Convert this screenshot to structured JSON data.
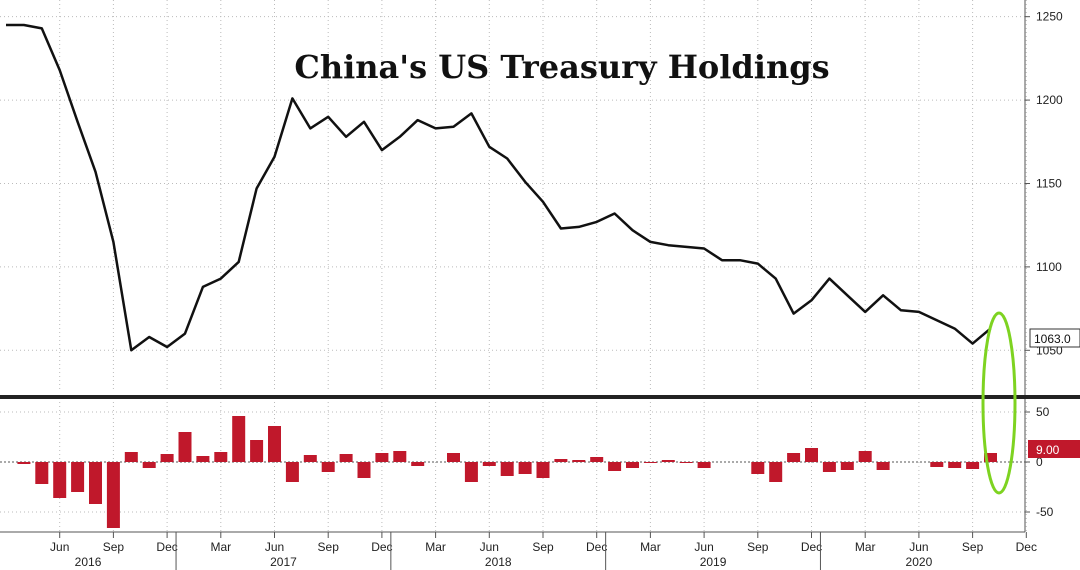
{
  "chart_data": [
    {
      "type": "line",
      "title": "China's US Treasury Holdings",
      "ylim": [
        1025,
        1260
      ],
      "yticks": [
        1050,
        1100,
        1150,
        1200,
        1250
      ],
      "ytick_labels": [
        "1050",
        "1100",
        "1150",
        "1200",
        "1250"
      ],
      "last_value_label": "1063.0",
      "grid": true,
      "x": [
        "2016-03",
        "2016-04",
        "2016-05",
        "2016-06",
        "2016-07",
        "2016-08",
        "2016-09",
        "2016-10",
        "2016-11",
        "2016-12",
        "2017-01",
        "2017-02",
        "2017-03",
        "2017-04",
        "2017-05",
        "2017-06",
        "2017-07",
        "2017-08",
        "2017-09",
        "2017-10",
        "2017-11",
        "2017-12",
        "2018-01",
        "2018-02",
        "2018-03",
        "2018-04",
        "2018-05",
        "2018-06",
        "2018-07",
        "2018-08",
        "2018-09",
        "2018-10",
        "2018-11",
        "2018-12",
        "2019-01",
        "2019-02",
        "2019-03",
        "2019-04",
        "2019-05",
        "2019-06",
        "2019-07",
        "2019-08",
        "2019-09",
        "2019-10",
        "2019-11",
        "2019-12",
        "2020-01",
        "2020-02",
        "2020-03",
        "2020-04",
        "2020-05",
        "2020-06",
        "2020-07",
        "2020-08",
        "2020-09",
        "2020-10"
      ],
      "series": [
        {
          "color": "#111111",
          "values": [
            1245,
            1245,
            1243,
            1218,
            1187,
            1157,
            1115,
            1050,
            1058,
            1052,
            1060,
            1088,
            1093,
            1103,
            1147,
            1166,
            1201,
            1183,
            1190,
            1178,
            1187,
            1170,
            1178,
            1188,
            1183,
            1184,
            1192,
            1172,
            1165,
            1151,
            1139,
            1123,
            1124,
            1127,
            1132,
            1122,
            1115,
            1113,
            1112,
            1111,
            1104,
            1104,
            1102,
            1093,
            1072,
            1080,
            1093,
            1083,
            1073,
            1083,
            1074,
            1073,
            1068,
            1063,
            1054,
            1063
          ]
        }
      ]
    },
    {
      "type": "bar",
      "ylim": [
        -70,
        60
      ],
      "yticks": [
        50,
        0,
        -50
      ],
      "ytick_labels": [
        "50",
        "0",
        "-50"
      ],
      "last_value_label": "9.00",
      "grid": true,
      "series": [
        {
          "color": "#c0182b",
          "values": [
            0,
            -2,
            -22,
            -36,
            -30,
            -42,
            -66,
            10,
            -6,
            8,
            30,
            6,
            10,
            46,
            22,
            36,
            -20,
            7,
            -10,
            8,
            -16,
            9,
            11,
            -4,
            0,
            9,
            -20,
            -4,
            -14,
            -12,
            -16,
            3,
            2,
            5,
            -9,
            -6,
            -1,
            2,
            -1,
            -6,
            0,
            0,
            -12,
            -20,
            9,
            14,
            -10,
            -8,
            11,
            -8,
            0,
            0,
            -5,
            -6,
            -7,
            9
          ]
        }
      ]
    }
  ],
  "x_axis": {
    "month_labels": [
      "Jun",
      "Sep",
      "Dec",
      "Mar",
      "Jun",
      "Sep",
      "Dec",
      "Mar",
      "Jun",
      "Sep",
      "Dec",
      "Mar",
      "Jun",
      "Sep",
      "Dec",
      "Mar",
      "Jun",
      "Sep",
      "Dec"
    ],
    "years": [
      "2016",
      "2017",
      "2018",
      "2019",
      "2020"
    ]
  },
  "colors": {
    "line": "#111111",
    "bar": "#c0182b",
    "label_box": "#c0182b",
    "highlight": "#7ed321",
    "grid": "#bbbbbb"
  }
}
